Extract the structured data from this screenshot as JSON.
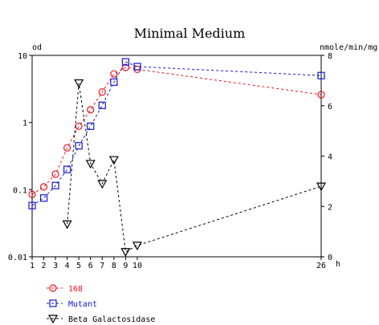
{
  "chart_data": {
    "type": "line",
    "title": "Minimal Medium",
    "xlabel": "h",
    "ylabel_left": "od",
    "ylabel_right": "nmole/min/mg",
    "x_ticks": [
      1,
      2,
      3,
      4,
      5,
      6,
      7,
      8,
      9,
      10,
      26
    ],
    "xlim": [
      1,
      26
    ],
    "y_left": {
      "scale": "log",
      "lim": [
        0.01,
        10
      ],
      "ticks": [
        0.01,
        0.1,
        1,
        10
      ],
      "tick_labels": [
        "0.01",
        "0.1",
        "1",
        "10"
      ]
    },
    "y_right": {
      "scale": "linear",
      "lim": [
        0,
        8
      ],
      "ticks": [
        0,
        2,
        4,
        6,
        8
      ],
      "tick_labels": [
        "0",
        "2",
        "4",
        "6",
        "8"
      ]
    },
    "grid": false,
    "legend_position": "bottom-left",
    "series": [
      {
        "name": "168",
        "axis": "left",
        "color": "#e8141e",
        "marker": "circle",
        "x": [
          1,
          2,
          3,
          4,
          5,
          6,
          7,
          8,
          9,
          10,
          26
        ],
        "y": [
          0.085,
          0.11,
          0.17,
          0.42,
          0.88,
          1.55,
          2.85,
          5.3,
          6.6,
          6.2,
          2.6
        ]
      },
      {
        "name": "Mutant",
        "axis": "left",
        "color": "#1414d2",
        "marker": "square",
        "x": [
          1,
          2,
          3,
          4,
          5,
          6,
          7,
          8,
          9,
          10,
          26
        ],
        "y": [
          0.058,
          0.075,
          0.115,
          0.2,
          0.45,
          0.88,
          1.8,
          4.0,
          8.0,
          6.8,
          5.0
        ]
      },
      {
        "name": "Beta Galactosidase",
        "axis": "right",
        "color": "#000000",
        "marker": "triangle-down",
        "x": [
          4,
          5,
          6,
          7,
          8,
          9,
          10,
          26
        ],
        "y": [
          1.3,
          6.9,
          3.7,
          2.9,
          3.85,
          0.2,
          0.45,
          2.8
        ]
      }
    ]
  }
}
